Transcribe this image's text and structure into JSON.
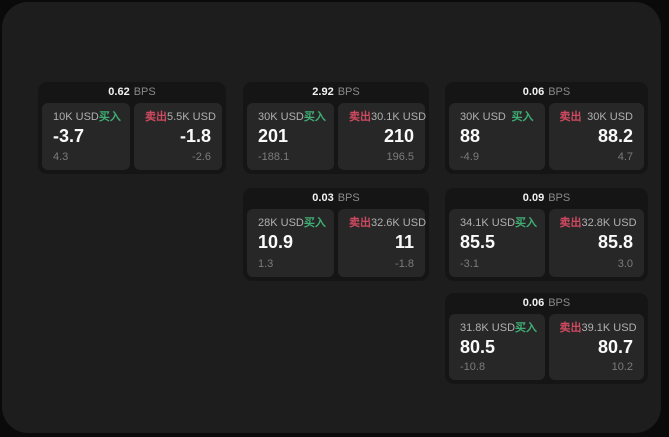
{
  "page": {
    "bps_suffix": "BPS",
    "buy_label": "买入",
    "sell_label": "卖出"
  },
  "colors": {
    "background": "#0a0a0a",
    "panel": "#1d1d1d",
    "card": "#151515",
    "tile": "#272727",
    "buy_green": "#3fae74",
    "sell_red": "#cf4a60",
    "muted": "#8a8a8a",
    "sub": "#7b7b7b"
  },
  "cards": [
    {
      "bps": "0.62",
      "buy": {
        "amount": "10K USD",
        "value": "-3.7",
        "sub": "4.3"
      },
      "sell": {
        "amount": "5.5K USD",
        "value": "-1.8",
        "sub": "-2.6"
      }
    },
    {
      "bps": "2.92",
      "buy": {
        "amount": "30K USD",
        "value": "201",
        "sub": "-188.1"
      },
      "sell": {
        "amount": "30.1K USD",
        "value": "210",
        "sub": "196.5"
      }
    },
    {
      "bps": "0.06",
      "buy": {
        "amount": "30K USD",
        "value": "88",
        "sub": "-4.9"
      },
      "sell": {
        "amount": "30K USD",
        "value": "88.2",
        "sub": "4.7"
      }
    },
    {
      "bps": "0.03",
      "buy": {
        "amount": "28K USD",
        "value": "10.9",
        "sub": "1.3"
      },
      "sell": {
        "amount": "32.6K USD",
        "value": "11",
        "sub": "-1.8"
      }
    },
    {
      "bps": "0.09",
      "buy": {
        "amount": "34.1K USD",
        "value": "85.5",
        "sub": "-3.1"
      },
      "sell": {
        "amount": "32.8K USD",
        "value": "85.8",
        "sub": "3.0"
      }
    },
    {
      "bps": "0.06",
      "buy": {
        "amount": "31.8K USD",
        "value": "80.5",
        "sub": "-10.8"
      },
      "sell": {
        "amount": "39.1K USD",
        "value": "80.7",
        "sub": "10.2"
      }
    }
  ]
}
